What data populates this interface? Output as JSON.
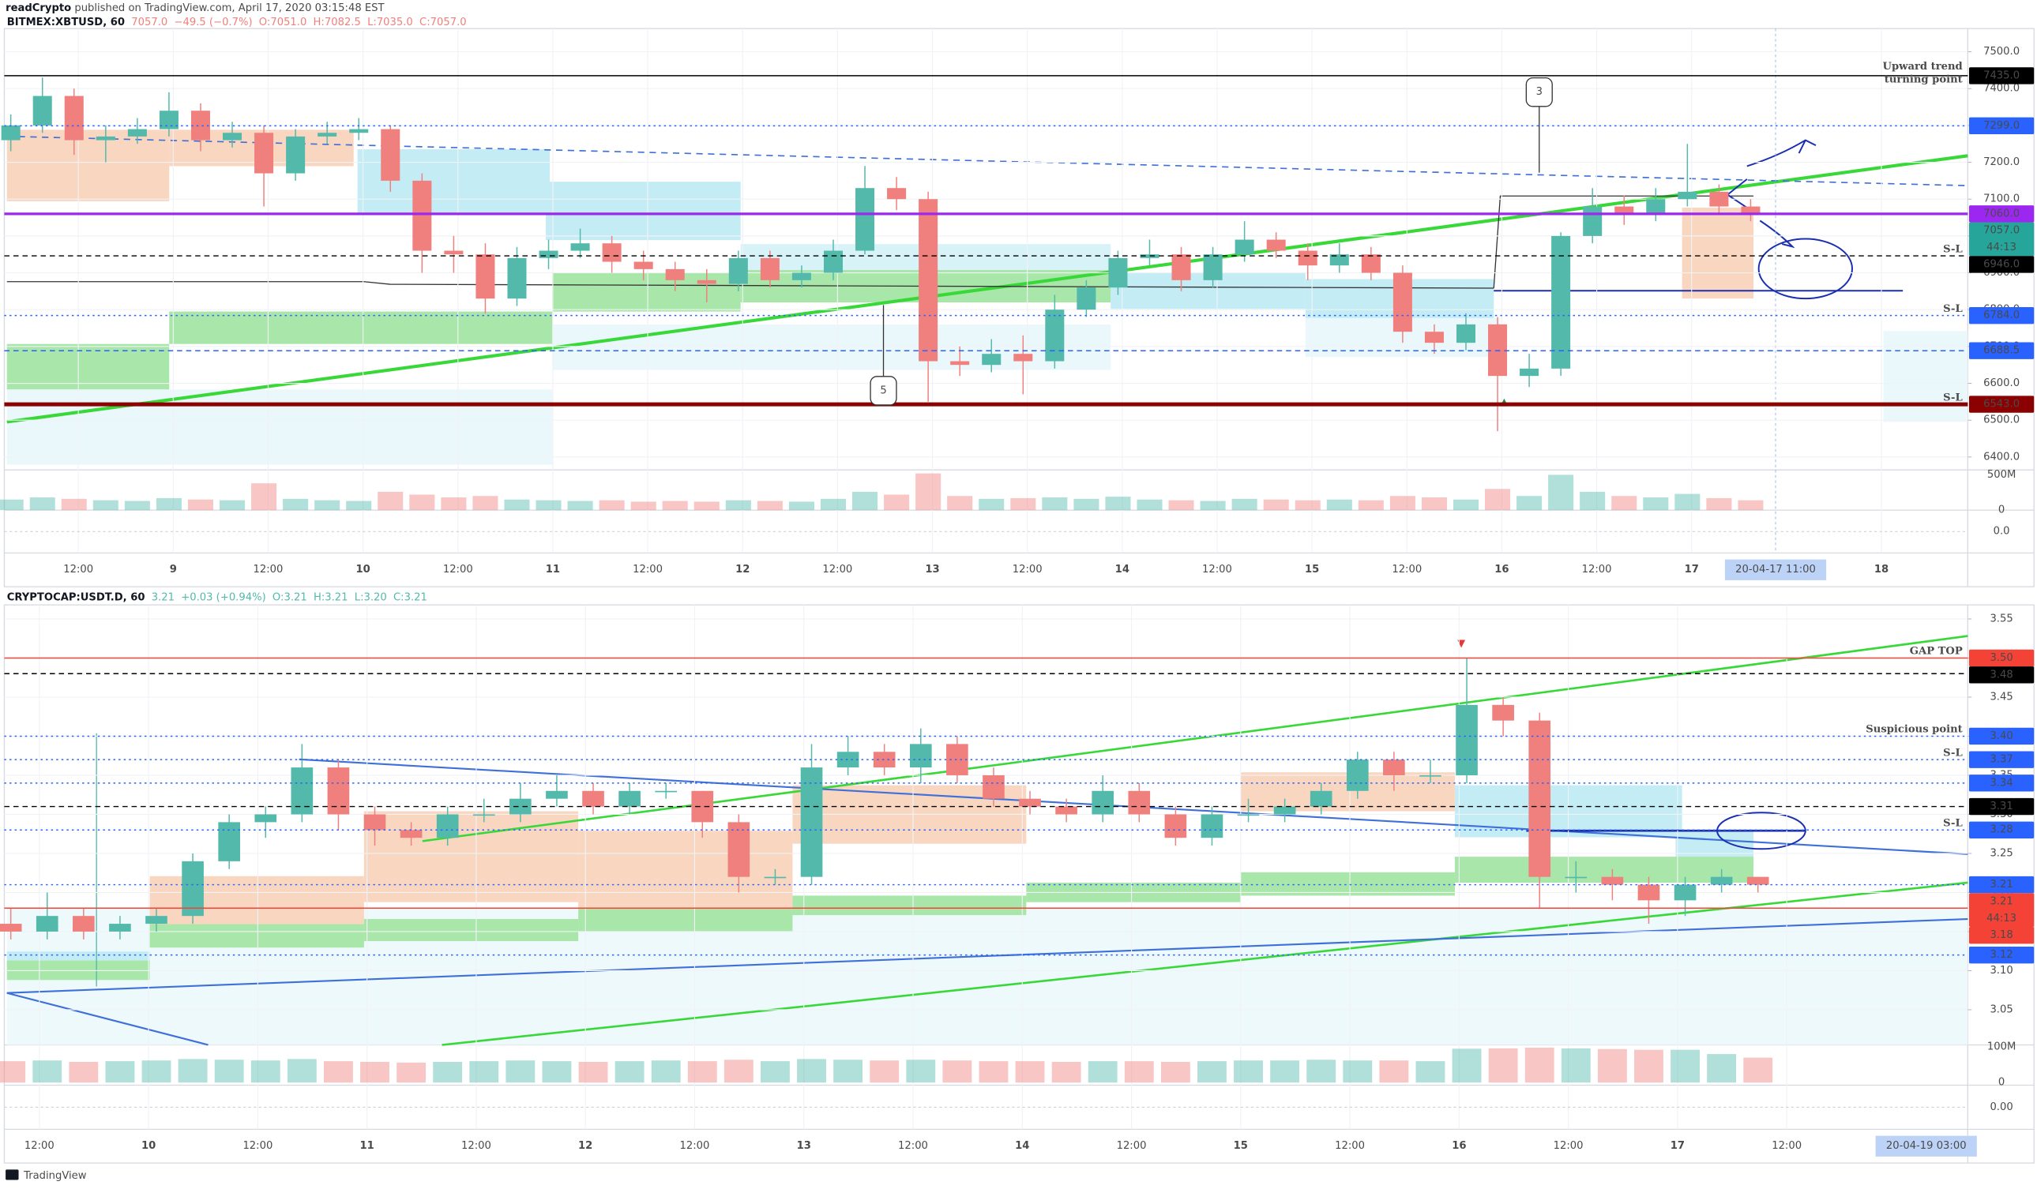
{
  "header": {
    "author": "readCrypto",
    "published": "published on TradingView.com, April 17, 2020 03:15:48 EST"
  },
  "footer": {
    "brand": "TradingView"
  },
  "chart_data": [
    {
      "type": "candlestick",
      "title": "BITMEX:XBTUSD, 60",
      "quote": [
        "7057.0",
        "−49.5 (−0.7%)",
        "O:7051.0",
        "H:7082.5",
        "L:7035.0",
        "C:7057.0"
      ],
      "up_color": "#53b9ab",
      "down_color": "#f0807d",
      "grid": true,
      "categories": [
        "12:00",
        "9",
        "12:00",
        "10",
        "12:00",
        "11",
        "12:00",
        "12",
        "12:00",
        "13",
        "12:00",
        "14",
        "12:00",
        "15",
        "12:00",
        "16",
        "12:00",
        "17",
        null,
        "18"
      ],
      "ohlc": [
        [
          7260,
          7330,
          7230,
          7300
        ],
        [
          7300,
          7430,
          7280,
          7380
        ],
        [
          7380,
          7400,
          7220,
          7260
        ],
        [
          7260,
          7300,
          7200,
          7270
        ],
        [
          7270,
          7320,
          7250,
          7290
        ],
        [
          7290,
          7390,
          7270,
          7340
        ],
        [
          7340,
          7360,
          7230,
          7260
        ],
        [
          7260,
          7310,
          7240,
          7280
        ],
        [
          7280,
          7300,
          7080,
          7170
        ],
        [
          7170,
          7290,
          7150,
          7270
        ],
        [
          7270,
          7310,
          7250,
          7280
        ],
        [
          7280,
          7320,
          7260,
          7290
        ],
        [
          7290,
          7300,
          7120,
          7150
        ],
        [
          7150,
          7170,
          6900,
          6960
        ],
        [
          6960,
          7000,
          6900,
          6950
        ],
        [
          6950,
          6980,
          6790,
          6830
        ],
        [
          6830,
          6970,
          6810,
          6940
        ],
        [
          6940,
          6990,
          6910,
          6960
        ],
        [
          6960,
          7020,
          6940,
          6980
        ],
        [
          6980,
          7000,
          6900,
          6930
        ],
        [
          6930,
          6960,
          6880,
          6910
        ],
        [
          6910,
          6930,
          6850,
          6880
        ],
        [
          6880,
          6910,
          6820,
          6870
        ],
        [
          6870,
          6960,
          6850,
          6940
        ],
        [
          6940,
          6960,
          6860,
          6880
        ],
        [
          6880,
          6920,
          6860,
          6900
        ],
        [
          6900,
          6990,
          6880,
          6960
        ],
        [
          6960,
          7190,
          6950,
          7130
        ],
        [
          7130,
          7160,
          7070,
          7100
        ],
        [
          7100,
          7120,
          6550,
          6660
        ],
        [
          6660,
          6700,
          6620,
          6650
        ],
        [
          6650,
          6720,
          6630,
          6680
        ],
        [
          6680,
          6730,
          6570,
          6660
        ],
        [
          6660,
          6840,
          6640,
          6800
        ],
        [
          6800,
          6880,
          6780,
          6860
        ],
        [
          6860,
          6960,
          6840,
          6940
        ],
        [
          6940,
          6990,
          6920,
          6950
        ],
        [
          6950,
          6970,
          6850,
          6880
        ],
        [
          6880,
          6970,
          6860,
          6950
        ],
        [
          6950,
          7040,
          6930,
          6990
        ],
        [
          6990,
          7010,
          6940,
          6960
        ],
        [
          6960,
          6980,
          6880,
          6920
        ],
        [
          6920,
          6980,
          6900,
          6950
        ],
        [
          6950,
          6970,
          6880,
          6900
        ],
        [
          6900,
          6920,
          6710,
          6740
        ],
        [
          6740,
          6760,
          6680,
          6710
        ],
        [
          6710,
          6790,
          6690,
          6760
        ],
        [
          6760,
          6780,
          6470,
          6620
        ],
        [
          6620,
          6680,
          6590,
          6640
        ],
        [
          6640,
          7010,
          6620,
          7000
        ],
        [
          7000,
          7130,
          6980,
          7080
        ],
        [
          7080,
          7110,
          7030,
          7060
        ],
        [
          7060,
          7130,
          7040,
          7100
        ],
        [
          7100,
          7250,
          7080,
          7120
        ],
        [
          7120,
          7140,
          7060,
          7080
        ],
        [
          7080,
          7100,
          7040,
          7057
        ]
      ],
      "volume": [
        150,
        180,
        160,
        140,
        130,
        170,
        150,
        140,
        380,
        160,
        140,
        130,
        260,
        220,
        180,
        200,
        150,
        140,
        130,
        140,
        120,
        130,
        120,
        140,
        130,
        120,
        160,
        260,
        220,
        520,
        200,
        160,
        170,
        180,
        160,
        190,
        150,
        140,
        130,
        160,
        150,
        140,
        150,
        140,
        200,
        180,
        150,
        300,
        200,
        500,
        260,
        200,
        180,
        230,
        170,
        140
      ],
      "ylim": [
        6365,
        7563
      ],
      "yticks": [
        {
          "value": 6400,
          "label": "6400.0"
        },
        {
          "value": 6500,
          "label": "6500.0"
        },
        {
          "value": 6600,
          "label": "6600.0"
        },
        {
          "value": 6700,
          "label": "6700.0"
        },
        {
          "value": 6800,
          "label": "6800.0"
        },
        {
          "value": 6900,
          "label": "6900.0"
        },
        {
          "value": 7000,
          "label": "7000.0"
        },
        {
          "value": 7100,
          "label": "7100.0"
        },
        {
          "value": 7200,
          "label": "7200.0"
        },
        {
          "value": 7300,
          "label": "7300.0"
        },
        {
          "value": 7400,
          "label": "7400.0"
        },
        {
          "value": 7500,
          "label": "7500.0"
        }
      ],
      "vol_ylim": [
        0,
        570
      ],
      "vol_ticks": [
        {
          "value": 500,
          "label": "500M"
        },
        0
      ],
      "osc_ticks": [
        {
          "value": 0,
          "label": "0.0"
        }
      ],
      "price_lines": [
        {
          "value": 7435,
          "label": "7435.0",
          "color": "#000000",
          "style": "solid",
          "note": [
            "Upward trend",
            "turning point"
          ]
        },
        {
          "value": 7299,
          "label": "7299.0",
          "color": "#2962ff",
          "style": "dotted"
        },
        {
          "value": 7060,
          "label": "7060.0",
          "color": "#9c27f0",
          "style": "solid",
          "width": 2
        },
        {
          "value": 6946,
          "label": "6946.0",
          "color": "#000000",
          "style": "dashed",
          "note": [
            "S-L"
          ]
        },
        {
          "value": 6784,
          "label": "6784.0",
          "color": "#2962ff",
          "style": "dotted",
          "note": [
            "S-L"
          ]
        },
        {
          "value": 6688.5,
          "label": "6688.5",
          "color": "#2962ff",
          "style": "dashed"
        },
        {
          "value": 6543,
          "label": "6543.0",
          "color": "#8b0000",
          "style": "solid",
          "width": 3,
          "note": [
            "S-L"
          ]
        }
      ],
      "last": {
        "value": 7057,
        "label": "7057.0",
        "color": "#26a69a"
      },
      "countdown": "44:13",
      "annotations": [
        "3",
        "5"
      ],
      "cursor_label": "20-04-17 11:00"
    },
    {
      "type": "candlestick",
      "title": "CRYPTOCAP:USDT.D, 60",
      "quote": [
        "3.21",
        "+0.03 (+0.94%)",
        "O:3.21",
        "H:3.21",
        "L:3.20",
        "C:3.21"
      ],
      "up_color": "#53b9ab",
      "down_color": "#f0807d",
      "grid": true,
      "categories": [
        "12:00",
        "10",
        "12:00",
        "11",
        "12:00",
        "12",
        "12:00",
        "13",
        "12:00",
        "14",
        "12:00",
        "15",
        "12:00",
        "16",
        "12:00",
        "17",
        "12:00"
      ],
      "ohlc": [
        [
          3.16,
          3.18,
          3.14,
          3.15
        ],
        [
          3.15,
          3.2,
          3.14,
          3.17
        ],
        [
          3.17,
          3.18,
          3.14,
          3.15
        ],
        [
          3.15,
          3.17,
          3.14,
          3.16
        ],
        [
          3.16,
          3.18,
          3.15,
          3.17
        ],
        [
          3.17,
          3.25,
          3.16,
          3.24
        ],
        [
          3.24,
          3.3,
          3.23,
          3.29
        ],
        [
          3.29,
          3.31,
          3.27,
          3.3
        ],
        [
          3.3,
          3.39,
          3.29,
          3.36
        ],
        [
          3.36,
          3.37,
          3.28,
          3.3
        ],
        [
          3.3,
          3.31,
          3.26,
          3.28
        ],
        [
          3.28,
          3.29,
          3.26,
          3.27
        ],
        [
          3.27,
          3.31,
          3.26,
          3.3
        ],
        [
          3.3,
          3.32,
          3.29,
          3.3
        ],
        [
          3.3,
          3.34,
          3.29,
          3.32
        ],
        [
          3.32,
          3.35,
          3.31,
          3.33
        ],
        [
          3.33,
          3.34,
          3.3,
          3.31
        ],
        [
          3.31,
          3.34,
          3.3,
          3.33
        ],
        [
          3.33,
          3.34,
          3.32,
          3.33
        ],
        [
          3.33,
          3.33,
          3.27,
          3.29
        ],
        [
          3.29,
          3.3,
          3.2,
          3.22
        ],
        [
          3.22,
          3.23,
          3.21,
          3.22
        ],
        [
          3.22,
          3.39,
          3.21,
          3.36
        ],
        [
          3.36,
          3.4,
          3.35,
          3.38
        ],
        [
          3.38,
          3.39,
          3.35,
          3.36
        ],
        [
          3.36,
          3.41,
          3.34,
          3.39
        ],
        [
          3.39,
          3.4,
          3.34,
          3.35
        ],
        [
          3.35,
          3.36,
          3.31,
          3.32
        ],
        [
          3.32,
          3.33,
          3.3,
          3.31
        ],
        [
          3.31,
          3.32,
          3.29,
          3.3
        ],
        [
          3.3,
          3.35,
          3.29,
          3.33
        ],
        [
          3.33,
          3.34,
          3.29,
          3.3
        ],
        [
          3.3,
          3.31,
          3.26,
          3.27
        ],
        [
          3.27,
          3.31,
          3.26,
          3.3
        ],
        [
          3.3,
          3.32,
          3.29,
          3.3
        ],
        [
          3.3,
          3.32,
          3.29,
          3.31
        ],
        [
          3.31,
          3.34,
          3.3,
          3.33
        ],
        [
          3.33,
          3.38,
          3.32,
          3.37
        ],
        [
          3.37,
          3.38,
          3.33,
          3.35
        ],
        [
          3.35,
          3.37,
          3.34,
          3.35
        ],
        [
          3.35,
          3.5,
          3.34,
          3.44
        ],
        [
          3.44,
          3.45,
          3.4,
          3.42
        ],
        [
          3.42,
          3.43,
          3.18,
          3.22
        ],
        [
          3.22,
          3.24,
          3.2,
          3.22
        ],
        [
          3.22,
          3.23,
          3.19,
          3.21
        ],
        [
          3.21,
          3.22,
          3.16,
          3.19
        ],
        [
          3.19,
          3.22,
          3.17,
          3.21
        ],
        [
          3.21,
          3.23,
          3.2,
          3.22
        ],
        [
          3.22,
          3.22,
          3.2,
          3.21
        ]
      ],
      "volume": [
        60,
        62,
        58,
        60,
        62,
        66,
        64,
        62,
        66,
        60,
        58,
        56,
        58,
        60,
        62,
        60,
        58,
        60,
        62,
        60,
        64,
        60,
        66,
        64,
        62,
        64,
        62,
        60,
        60,
        58,
        60,
        60,
        58,
        60,
        62,
        62,
        64,
        62,
        62,
        60,
        95,
        96,
        98,
        96,
        94,
        92,
        92,
        80,
        70
      ],
      "ylim": [
        3.005,
        3.568
      ],
      "yticks": [
        3.05,
        {
          "value": 3.1,
          "label": "3.10"
        },
        3.15,
        {
          "value": 3.2,
          "label": "3.20"
        },
        3.25,
        {
          "value": 3.3,
          "label": "3.30"
        },
        3.35,
        {
          "value": 3.4,
          "label": "3.40"
        },
        3.45,
        {
          "value": 3.5,
          "label": "3.50"
        },
        3.55
      ],
      "vol_ylim": [
        0,
        102
      ],
      "vol_ticks": [
        {
          "value": 100,
          "label": "100M"
        },
        0
      ],
      "osc_ticks": [
        {
          "value": 0,
          "label": "0.00"
        }
      ],
      "price_lines": [
        {
          "value": 3.5,
          "label": "3.50",
          "color": "#f44336",
          "style": "solid",
          "note": [
            "GAP TOP"
          ]
        },
        {
          "value": 3.48,
          "label": "3.48",
          "color": "#000000",
          "style": "dashed"
        },
        {
          "value": 3.4,
          "label": "3.40",
          "color": "#2962ff",
          "style": "dotted",
          "note": [
            "Suspicious point"
          ]
        },
        {
          "value": 3.37,
          "label": "3.37",
          "color": "#2962ff",
          "style": "dotted",
          "note": [
            "S-L"
          ]
        },
        {
          "value": 3.34,
          "label": "3.34",
          "color": "#2962ff",
          "style": "dotted"
        },
        {
          "value": 3.31,
          "label": "3.31",
          "color": "#000000",
          "style": "dashed"
        },
        {
          "value": 3.28,
          "label": "3.28",
          "color": "#2962ff",
          "style": "dotted",
          "note": [
            "S-L"
          ]
        },
        {
          "value": 3.21,
          "label": "3.21",
          "color": "#2962ff",
          "style": "dotted"
        },
        {
          "value": 3.18,
          "label": "3.18",
          "color": "#f44336",
          "style": "solid"
        },
        {
          "value": 3.12,
          "label": "3.12",
          "color": "#2962ff",
          "style": "dotted"
        }
      ],
      "last": {
        "value": 3.21,
        "label": "3.21",
        "color": "#f44336"
      },
      "countdown": "44:13",
      "annotations": [],
      "cursor_label": "20-04-19 03:00"
    }
  ]
}
